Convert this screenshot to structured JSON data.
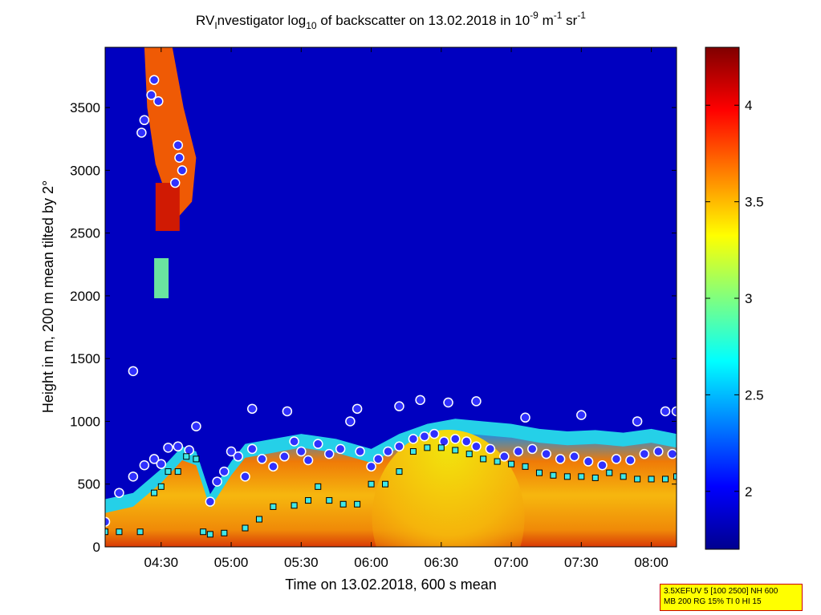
{
  "chart_data": {
    "type": "heatmap",
    "title": {
      "main": "RV",
      "main_sub": "I",
      "part1": "nvestigator log",
      "part1_sub": "10",
      "part2": " of backscatter on 13.02.2018 in 10",
      "exp1": "-9",
      "part3": " m",
      "exp2": "-1",
      "part4": " sr",
      "exp3": "-1"
    },
    "xlabel": "Time on 13.02.2018, 600 s mean",
    "ylabel": "Height in m, 200 m mean tilted by 2°",
    "x_ticks": [
      "04:30",
      "05:00",
      "05:30",
      "06:00",
      "06:30",
      "07:00",
      "07:30",
      "08:00"
    ],
    "x_range_hours": [
      4.1,
      8.18
    ],
    "y_ticks": [
      "0",
      "500",
      "1000",
      "1500",
      "2000",
      "2500",
      "3000",
      "3500"
    ],
    "y_range": [
      0,
      3980
    ],
    "colorbar": {
      "ticks": [
        "2",
        "2.5",
        "3",
        "3.5",
        "4"
      ],
      "range": [
        1.7,
        4.3
      ],
      "colormap": "jet"
    },
    "background_value": 1.85,
    "aerosol_layer_top_m": [
      [
        4.1,
        380
      ],
      [
        4.3,
        430
      ],
      [
        4.5,
        620
      ],
      [
        4.65,
        800
      ],
      [
        4.75,
        760
      ],
      [
        4.85,
        420
      ],
      [
        5.0,
        680
      ],
      [
        5.1,
        820
      ],
      [
        5.25,
        850
      ],
      [
        5.5,
        900
      ],
      [
        5.75,
        860
      ],
      [
        6.0,
        780
      ],
      [
        6.2,
        900
      ],
      [
        6.4,
        980
      ],
      [
        6.6,
        1020
      ],
      [
        6.8,
        1000
      ],
      [
        7.0,
        980
      ],
      [
        7.2,
        940
      ],
      [
        7.4,
        920
      ],
      [
        7.6,
        930
      ],
      [
        7.8,
        910
      ],
      [
        8.0,
        940
      ],
      [
        8.18,
        900
      ]
    ],
    "series": [
      {
        "marker": "circle",
        "points": [
          [
            4.1,
            200
          ],
          [
            4.2,
            430
          ],
          [
            4.3,
            560
          ],
          [
            4.38,
            650
          ],
          [
            4.45,
            700
          ],
          [
            4.5,
            660
          ],
          [
            4.55,
            790
          ],
          [
            4.62,
            800
          ],
          [
            4.7,
            770
          ],
          [
            4.75,
            960
          ],
          [
            4.85,
            360
          ],
          [
            4.9,
            520
          ],
          [
            4.95,
            600
          ],
          [
            5.0,
            760
          ],
          [
            5.05,
            720
          ],
          [
            5.1,
            560
          ],
          [
            5.15,
            780
          ],
          [
            5.22,
            700
          ],
          [
            5.3,
            640
          ],
          [
            5.38,
            720
          ],
          [
            5.45,
            840
          ],
          [
            5.5,
            760
          ],
          [
            5.55,
            690
          ],
          [
            5.62,
            820
          ],
          [
            5.7,
            740
          ],
          [
            5.78,
            780
          ],
          [
            5.85,
            1000
          ],
          [
            5.92,
            760
          ],
          [
            6.0,
            640
          ],
          [
            6.05,
            700
          ],
          [
            6.12,
            760
          ],
          [
            6.2,
            800
          ],
          [
            6.3,
            860
          ],
          [
            6.38,
            880
          ],
          [
            6.45,
            900
          ],
          [
            6.52,
            840
          ],
          [
            6.6,
            860
          ],
          [
            6.68,
            840
          ],
          [
            6.75,
            800
          ],
          [
            6.85,
            780
          ],
          [
            6.95,
            720
          ],
          [
            7.05,
            760
          ],
          [
            7.15,
            780
          ],
          [
            7.25,
            740
          ],
          [
            7.35,
            700
          ],
          [
            7.45,
            720
          ],
          [
            7.55,
            680
          ],
          [
            7.65,
            650
          ],
          [
            7.75,
            700
          ],
          [
            7.85,
            690
          ],
          [
            7.95,
            740
          ],
          [
            8.05,
            760
          ],
          [
            8.15,
            740
          ],
          [
            4.3,
            1400
          ],
          [
            5.15,
            1100
          ],
          [
            5.4,
            1080
          ],
          [
            5.9,
            1100
          ],
          [
            6.2,
            1120
          ],
          [
            6.35,
            1170
          ],
          [
            6.55,
            1150
          ],
          [
            6.75,
            1160
          ],
          [
            7.1,
            1030
          ],
          [
            7.5,
            1050
          ],
          [
            7.9,
            1000
          ],
          [
            8.1,
            1080
          ],
          [
            8.18,
            1080
          ],
          [
            4.45,
            3720
          ],
          [
            4.43,
            3600
          ],
          [
            4.48,
            3550
          ],
          [
            4.38,
            3400
          ],
          [
            4.36,
            3300
          ],
          [
            4.62,
            3200
          ],
          [
            4.63,
            3100
          ],
          [
            4.65,
            3000
          ],
          [
            4.6,
            2900
          ]
        ]
      },
      {
        "marker": "square",
        "points": [
          [
            4.1,
            120
          ],
          [
            4.2,
            120
          ],
          [
            4.35,
            120
          ],
          [
            4.45,
            430
          ],
          [
            4.5,
            480
          ],
          [
            4.55,
            600
          ],
          [
            4.62,
            600
          ],
          [
            4.68,
            720
          ],
          [
            4.75,
            700
          ],
          [
            4.8,
            120
          ],
          [
            4.85,
            100
          ],
          [
            4.95,
            110
          ],
          [
            5.1,
            150
          ],
          [
            5.2,
            220
          ],
          [
            5.3,
            320
          ],
          [
            5.45,
            330
          ],
          [
            5.55,
            370
          ],
          [
            5.62,
            480
          ],
          [
            5.7,
            370
          ],
          [
            5.8,
            340
          ],
          [
            5.9,
            340
          ],
          [
            6.0,
            500
          ],
          [
            6.1,
            500
          ],
          [
            6.2,
            600
          ],
          [
            6.3,
            760
          ],
          [
            6.4,
            790
          ],
          [
            6.5,
            790
          ],
          [
            6.6,
            770
          ],
          [
            6.7,
            740
          ],
          [
            6.8,
            700
          ],
          [
            6.9,
            680
          ],
          [
            7.0,
            660
          ],
          [
            7.1,
            640
          ],
          [
            7.2,
            590
          ],
          [
            7.3,
            570
          ],
          [
            7.4,
            560
          ],
          [
            7.5,
            560
          ],
          [
            7.6,
            550
          ],
          [
            7.7,
            590
          ],
          [
            7.8,
            560
          ],
          [
            7.9,
            540
          ],
          [
            8.0,
            540
          ],
          [
            8.1,
            540
          ],
          [
            8.18,
            560
          ]
        ]
      }
    ]
  },
  "info_box": {
    "line1": "3.5XEFUV 5 [100 2500] NH 600",
    "line2": "MB 200 RG 15% TI 0 HI 15"
  }
}
